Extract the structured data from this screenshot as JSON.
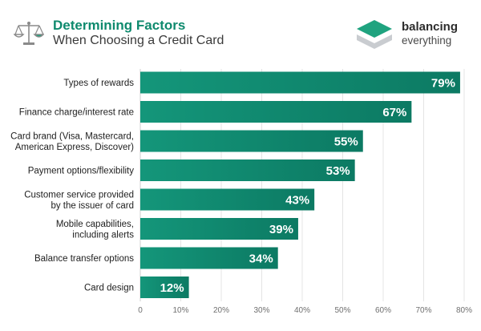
{
  "header": {
    "title": "Determining Factors",
    "subtitle": "When Choosing a Credit Card",
    "brand_line1": "balancing",
    "brand_line2": "everything",
    "icons": {
      "left": "balance-scale-icon",
      "brand": "balancing-everything-logo"
    }
  },
  "colors": {
    "bar": "#14967a",
    "bar_gradient_end": "#0c7a63",
    "title": "#0f8a6e",
    "brand_logo": "#1fa37f"
  },
  "chart_data": {
    "type": "bar",
    "orientation": "horizontal",
    "title": "Determining Factors",
    "subtitle": "When Choosing a Credit Card",
    "xlabel": "",
    "ylabel": "",
    "xlim": [
      0,
      80
    ],
    "grid": true,
    "legend": "none",
    "categories": [
      [
        "Types of rewards"
      ],
      [
        "Finance charge/interest rate"
      ],
      [
        "Card brand (Visa, Mastercard,",
        "American Express, Discover)"
      ],
      [
        "Payment options/flexibility"
      ],
      [
        "Customer service provided",
        "by the issuer of card"
      ],
      [
        "Mobile capabilities,",
        "including alerts"
      ],
      [
        "Balance transfer options"
      ],
      [
        "Card design"
      ]
    ],
    "values": [
      79,
      67,
      55,
      53,
      43,
      39,
      34,
      12
    ],
    "value_labels": [
      "79%",
      "67%",
      "55%",
      "53%",
      "43%",
      "39%",
      "34%",
      "12%"
    ],
    "ticks": [
      0,
      10,
      20,
      30,
      40,
      50,
      60,
      70,
      80
    ],
    "tick_labels": [
      "0",
      "10%",
      "20%",
      "30%",
      "40%",
      "50%",
      "60%",
      "70%",
      "80%"
    ]
  }
}
